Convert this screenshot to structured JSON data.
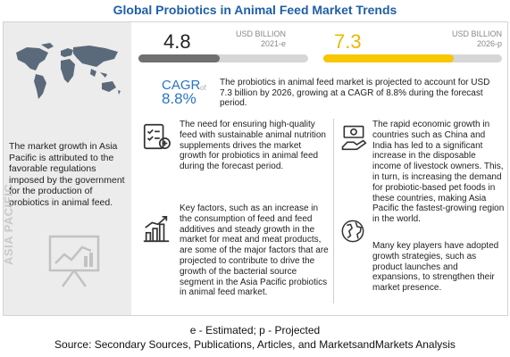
{
  "title": "Global Probiotics in Animal Feed  Market Trends",
  "chart_data": {
    "type": "bar",
    "categories": [
      "2021-e",
      "2026-p"
    ],
    "values": [
      4.8,
      7.3
    ],
    "unit": "USD BILLION",
    "xlim": [
      0,
      10
    ],
    "colors": [
      "#707070",
      "#f7c700"
    ],
    "cagr_label": "CAGR",
    "cagr_of": "of",
    "cagr": "8.8%"
  },
  "stats": [
    {
      "value": "4.8",
      "unit": "USD BILLION",
      "year": "2021-e"
    },
    {
      "value": "7.3",
      "unit": "USD BILLION",
      "year": "2026-p"
    }
  ],
  "description": "The probiotics in animal feed market is projected to account for USD 7.3 billion by 2026, growing at a CAGR of 8.8% during the forecast period.",
  "left_panel": {
    "text": "The market growth in Asia Pacific is attributed to the favorable regulations imposed by the government for the production of probiotics in animal feed.",
    "vertical_label": "ASIA PACIFIC"
  },
  "drivers": [
    {
      "icon": "checklist-icon",
      "text": "The need for ensuring high-quality feed with sustainable animal nutrition supplements drives the market growth for probiotics in animal feed during the forecast period."
    },
    {
      "icon": "growth-chart-icon",
      "text": "Key factors, such as an increase in the consumption of feed and feed additives and steady growth in the market for meat and meat products, are some of the major factors that are projected to contribute to drive the growth of the bacterial source segment in the Asia Pacific probiotics in animal feed market."
    },
    {
      "icon": "money-hand-icon",
      "text": "The rapid economic growth in countries such as China and India has led to a significant increase in the disposable income of livestock owners. This, in turn, is increasing the demand for probiotic-based pet foods in these countries, making Asia Pacific the fastest-growing region in the world."
    },
    {
      "icon": "globe-icon",
      "text": "Many key players have adopted growth strategies, such as product launches and expansions, to strengthen their market presence."
    }
  ],
  "legend": "e - Estimated; p - Projected",
  "source": "Source: Secondary Sources, Publications, Articles, and MarketsandMarkets Analysis"
}
